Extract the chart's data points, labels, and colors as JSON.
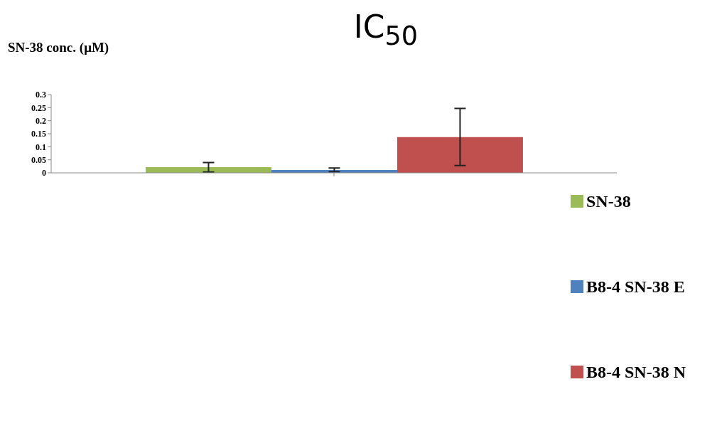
{
  "chart_data": {
    "type": "bar",
    "title": "IC$_{50}$",
    "ylabel": "SN-38 conc. (μM)",
    "categories": [
      null
    ],
    "series": [
      {
        "name": "SN-38",
        "color": "#9bbb59",
        "values": [
          0.022
        ],
        "errors": [
          [
            0.003,
            0.0395
          ]
        ]
      },
      {
        "name": "B8-4 SN-38 E",
        "color": "#4f81bd",
        "values": [
          0.011
        ],
        "errors": [
          [
            0.0044,
            0.0185
          ]
        ]
      },
      {
        "name": "B8-4 SN-38 N",
        "color": "#c0504d",
        "values": [
          0.137
        ],
        "errors": [
          [
            0.028,
            0.247
          ]
        ]
      }
    ],
    "ylim": [
      0,
      0.3
    ],
    "yticks": [
      0,
      0.05,
      0.1,
      0.15,
      0.2,
      0.25,
      0.3
    ],
    "grid": false,
    "legend": "right"
  }
}
